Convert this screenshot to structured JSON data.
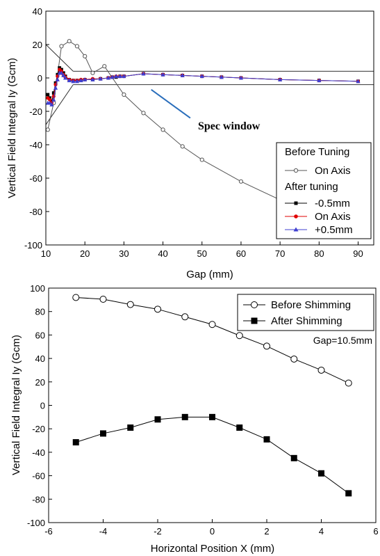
{
  "chart_data": [
    {
      "type": "line",
      "xlabel": "Gap (mm)",
      "ylabel": "Vertical Field Integral Iy (Gcm)",
      "xlim": [
        10,
        94
      ],
      "ylim": [
        -100,
        40
      ],
      "xticks": [
        "10",
        "20",
        "30",
        "40",
        "50",
        "60",
        "70",
        "80",
        "90"
      ],
      "yticks": [
        "-100",
        "-80",
        "-60",
        "-40",
        "-20",
        "0",
        "20",
        "40"
      ],
      "legend_position": "bottom-right",
      "legend_groups": [
        "Before Tuning",
        "After tuning"
      ],
      "series": [
        {
          "name": "On Axis",
          "group": "Before Tuning",
          "color": "#555555",
          "marker": "open-circle",
          "x": [
            10.5,
            12,
            14,
            16,
            18,
            20,
            22,
            25,
            30,
            35,
            40,
            45,
            50,
            60,
            70,
            80,
            90
          ],
          "y": [
            -31,
            -15,
            19,
            22,
            19,
            13,
            3,
            7,
            -10,
            -21,
            -31,
            -41,
            -49,
            -62,
            -73,
            -82,
            -90
          ]
        },
        {
          "name": "-0.5mm",
          "group": "After tuning",
          "color": "#000000",
          "marker": "filled-square",
          "x": [
            10.5,
            11,
            11.5,
            12,
            12.5,
            13,
            13.5,
            14,
            14.5,
            15,
            16,
            17,
            18,
            19,
            20,
            22,
            24,
            26,
            27,
            28,
            29,
            30,
            35,
            40,
            45,
            50,
            55,
            60,
            70,
            80,
            90
          ],
          "y": [
            -10,
            -12,
            -14,
            -9,
            -3,
            2,
            6,
            5,
            3,
            1,
            -1,
            -1.5,
            -1.5,
            -1.5,
            -1,
            -1,
            -0.5,
            0,
            0.5,
            0.5,
            1,
            1,
            2.5,
            2,
            1.5,
            1,
            0.5,
            0,
            -1,
            -1.5,
            -2
          ]
        },
        {
          "name": "On Axis",
          "group": "After tuning",
          "color": "#e00000",
          "marker": "filled-circle",
          "x": [
            10.5,
            11,
            11.5,
            12,
            12.5,
            13,
            13.5,
            14,
            14.5,
            15,
            16,
            17,
            18,
            19,
            20,
            22,
            24,
            26,
            27,
            28,
            29,
            30,
            35,
            40,
            45,
            50,
            55,
            60,
            70,
            80,
            90
          ],
          "y": [
            -12,
            -13,
            -15,
            -11,
            -4,
            1,
            5,
            4,
            2,
            0.5,
            -1,
            -1.5,
            -1.5,
            -1,
            -1,
            -0.5,
            -0.5,
            0,
            0.5,
            1,
            1,
            1,
            2.5,
            2,
            1.5,
            1,
            0.5,
            0,
            -1,
            -1.5,
            -2
          ]
        },
        {
          "name": "+0.5mm",
          "group": "After tuning",
          "color": "#3f3fd0",
          "marker": "filled-triangle",
          "x": [
            10.5,
            11,
            11.5,
            12,
            12.5,
            13,
            13.5,
            14,
            14.5,
            15,
            16,
            17,
            18,
            19,
            20,
            22,
            24,
            26,
            27,
            28,
            29,
            30,
            35,
            40,
            45,
            50,
            55,
            60,
            70,
            80,
            90
          ],
          "y": [
            -15,
            -15,
            -16,
            -13,
            -6,
            -1,
            3,
            3,
            1.5,
            0,
            -1.5,
            -2,
            -2,
            -1.5,
            -1,
            -1,
            -0.5,
            0,
            0.5,
            1,
            1,
            1,
            2.5,
            2,
            1.5,
            1,
            0.5,
            0,
            -1,
            -1.5,
            -2
          ]
        }
      ],
      "spec_window": {
        "upper": [
          [
            17,
            4
          ],
          [
            94,
            4
          ]
        ],
        "lower": [
          [
            17,
            -4
          ],
          [
            94,
            -4
          ]
        ],
        "upper_diag": [
          [
            10,
            20
          ],
          [
            17,
            4
          ]
        ],
        "lower_diag": [
          [
            10,
            -28
          ],
          [
            17,
            -4
          ]
        ]
      },
      "annotation": {
        "text": "Spec window",
        "line_from": [
          37,
          -7
        ],
        "line_to": [
          47,
          -24
        ],
        "line_color": "#2a6ebb"
      }
    },
    {
      "type": "line",
      "xlabel": "Horizontal Position X (mm)",
      "ylabel": "Vertical Field Integral Iy (Gcm)",
      "xlim": [
        -6,
        6
      ],
      "ylim": [
        -100,
        100
      ],
      "xticks": [
        "-6",
        "-4",
        "-2",
        "0",
        "2",
        "4",
        "6"
      ],
      "yticks": [
        "-100",
        "-80",
        "-60",
        "-40",
        "-20",
        "0",
        "20",
        "40",
        "60",
        "80",
        "100"
      ],
      "legend_position": "top-right",
      "annotation": {
        "text": "Gap=10.5mm"
      },
      "series": [
        {
          "name": "Before Shimming",
          "color": "#000000",
          "marker": "open-circle",
          "x": [
            -5,
            -4,
            -3,
            -2,
            -1,
            0,
            1,
            2,
            3,
            4,
            5
          ],
          "y": [
            92,
            90.5,
            86,
            82,
            75.5,
            69,
            59.5,
            50.5,
            39.5,
            30,
            19
          ]
        },
        {
          "name": "After Shimming",
          "color": "#000000",
          "marker": "filled-square",
          "x": [
            -5,
            -4,
            -3,
            -2,
            -1,
            0,
            1,
            2,
            3,
            4,
            5
          ],
          "y": [
            -31.5,
            -24,
            -19,
            -12,
            -10,
            -10,
            -19,
            -29,
            -45,
            -58,
            -75
          ]
        }
      ]
    }
  ]
}
